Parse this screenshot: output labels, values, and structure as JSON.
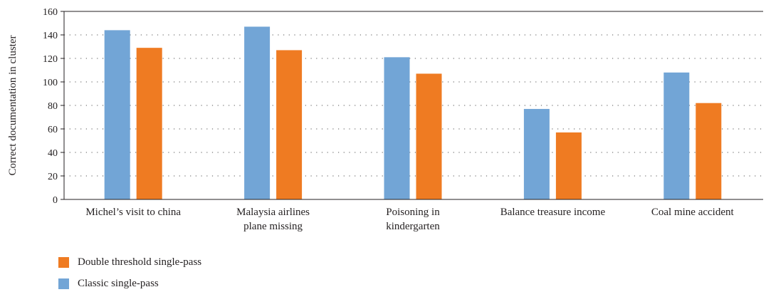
{
  "chart_data": {
    "type": "bar",
    "ylabel": "Correct documentation in cluster",
    "xlabel": "",
    "ylim": [
      0,
      160
    ],
    "yticks": [
      0,
      20,
      40,
      60,
      80,
      100,
      120,
      140,
      160
    ],
    "grid": true,
    "categories": [
      [
        "Michel’s visit to china"
      ],
      [
        "Malaysia airlines",
        "plane missing"
      ],
      [
        "Poisoning in",
        "kindergarten"
      ],
      [
        "Balance treasure income"
      ],
      [
        "Coal mine accident"
      ]
    ],
    "series": [
      {
        "name": "Classic single-pass",
        "color": "#72a5d6",
        "values": [
          144,
          147,
          121,
          77,
          108
        ]
      },
      {
        "name": "Double threshold single-pass",
        "color": "#ef7b22",
        "values": [
          129,
          127,
          107,
          57,
          82
        ]
      }
    ],
    "legend": {
      "placement": "bottom-left",
      "order": [
        "Double threshold single-pass",
        "Classic single-pass"
      ]
    }
  }
}
